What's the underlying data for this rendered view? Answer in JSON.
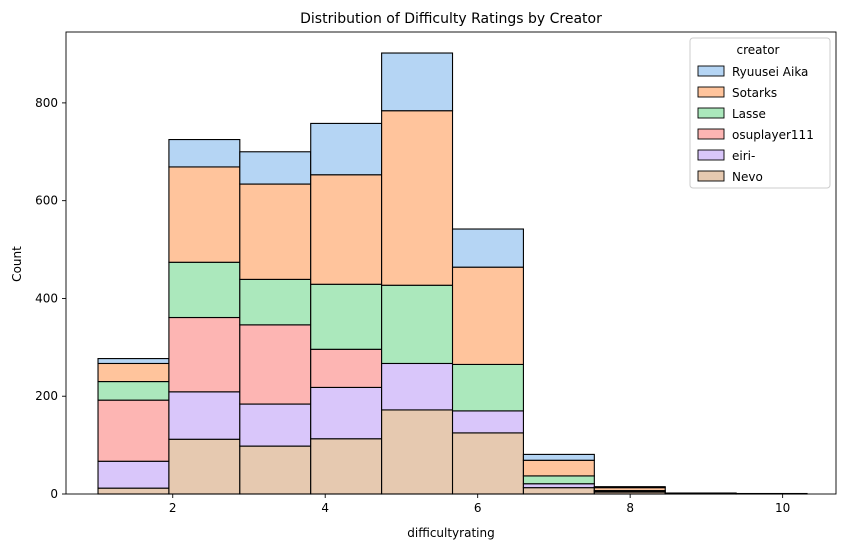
{
  "chart_data": {
    "type": "bar",
    "stacked": true,
    "histogram": true,
    "title": "Distribution of Difficulty Ratings by Creator",
    "xlabel": "difficultyrating",
    "ylabel": "Count",
    "xlim": [
      0.6,
      10.7
    ],
    "ylim": [
      0,
      945
    ],
    "xticks": [
      2,
      4,
      6,
      8,
      10
    ],
    "yticks": [
      0,
      200,
      400,
      600,
      800
    ],
    "grid": false,
    "legend_title": "creator",
    "legend_position": "top-right",
    "bin_edges": [
      1.02,
      1.95,
      2.88,
      3.81,
      4.74,
      5.67,
      6.6,
      7.53,
      8.46,
      9.39,
      10.32
    ],
    "series": [
      {
        "name": "Nevo",
        "color": "#e6c9b0",
        "values": [
          12,
          112,
          98,
          113,
          172,
          125,
          13,
          4,
          1,
          1
        ]
      },
      {
        "name": "eiri-",
        "color": "#d9c6fa",
        "values": [
          55,
          97,
          86,
          105,
          95,
          45,
          8,
          2,
          0,
          0
        ]
      },
      {
        "name": "osuplayer111",
        "color": "#fdb5b3",
        "values": [
          125,
          152,
          162,
          78,
          0,
          0,
          0,
          0,
          0,
          0
        ]
      },
      {
        "name": "Lasse",
        "color": "#abe8bc",
        "values": [
          38,
          113,
          93,
          133,
          160,
          95,
          16,
          1,
          0,
          0
        ]
      },
      {
        "name": "Sotarks",
        "color": "#ffc49c",
        "values": [
          37,
          195,
          195,
          224,
          357,
          199,
          32,
          6,
          1,
          0
        ]
      },
      {
        "name": "Ryuusei Aika",
        "color": "#b5d5f4",
        "values": [
          10,
          56,
          66,
          105,
          118,
          78,
          12,
          2,
          0,
          0
        ]
      }
    ],
    "legend_order": [
      "Ryuusei Aika",
      "Sotarks",
      "Lasse",
      "osuplayer111",
      "eiri-",
      "Nevo"
    ]
  }
}
